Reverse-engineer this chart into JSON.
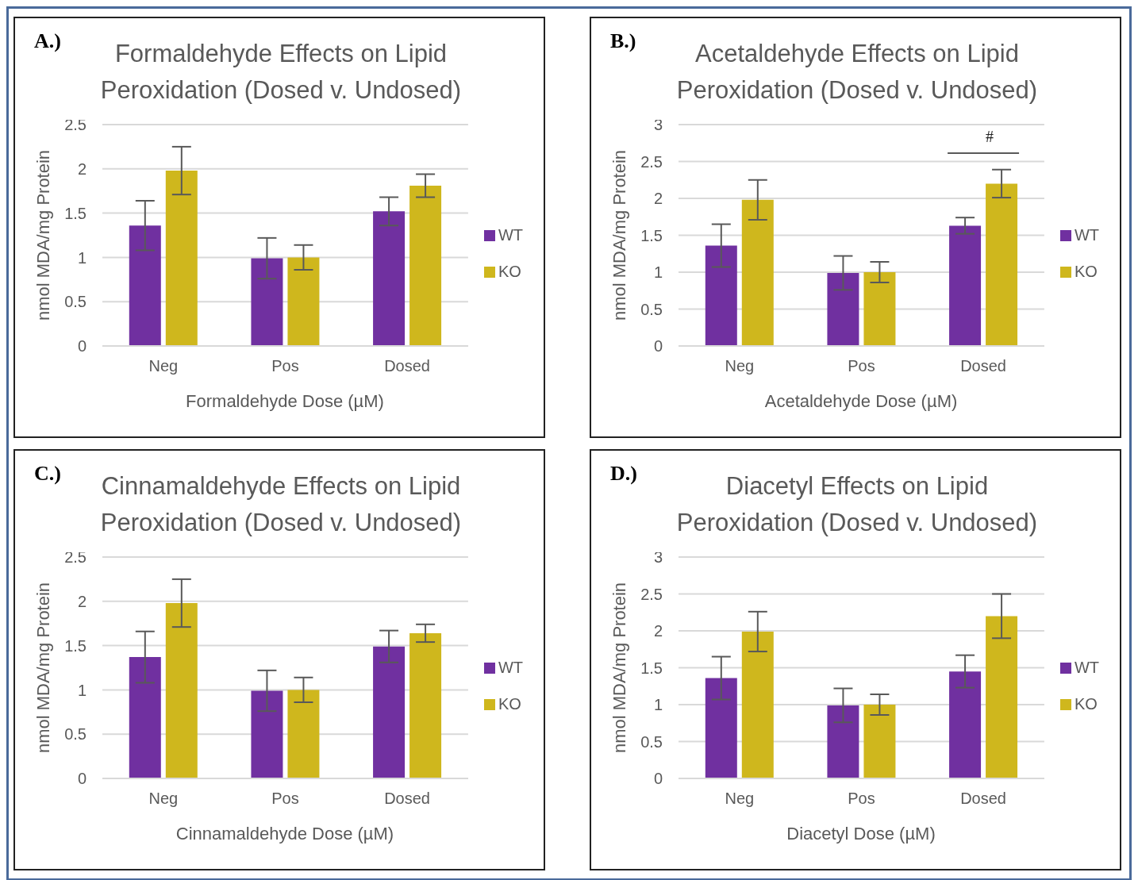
{
  "chart_data": [
    {
      "type": "bar",
      "title": "Formaldehyde Effects on Lipid Peroxidation (Dosed v. Undosed)",
      "xlabel": "Formaldehyde Dose (µM)",
      "ylabel": "nmol MDA/mg Protein",
      "annotations": [
        "A.)"
      ],
      "categories": [
        "Neg",
        "Pos",
        "Dosed"
      ],
      "series": [
        {
          "name": "WT",
          "color": "#7030a0",
          "values": [
            1.36,
            0.99,
            1.52
          ],
          "errors": [
            0.28,
            0.23,
            0.16
          ]
        },
        {
          "name": "KO",
          "color": "#cfb71d",
          "values": [
            1.98,
            1.0,
            1.81
          ],
          "errors": [
            0.27,
            0.14,
            0.13
          ]
        }
      ],
      "ylim": [
        0,
        2.5
      ],
      "yticks": [
        0,
        0.5,
        1,
        1.5,
        2,
        2.5
      ],
      "grid": "y",
      "legend": "right"
    },
    {
      "type": "bar",
      "title": "Acetaldehyde Effects on Lipid Peroxidation (Dosed v. Undosed)",
      "xlabel": "Acetaldehyde Dose (µM)",
      "ylabel": "nmol MDA/mg Protein",
      "annotations": [
        "B.)",
        "#"
      ],
      "categories": [
        "Neg",
        "Pos",
        "Dosed"
      ],
      "series": [
        {
          "name": "WT",
          "color": "#7030a0",
          "values": [
            1.36,
            0.99,
            1.63
          ],
          "errors": [
            0.29,
            0.23,
            0.11
          ]
        },
        {
          "name": "KO",
          "color": "#cfb71d",
          "values": [
            1.98,
            1.0,
            2.2
          ],
          "errors": [
            0.27,
            0.14,
            0.19
          ]
        }
      ],
      "ylim": [
        0,
        3
      ],
      "yticks": [
        0,
        0.5,
        1,
        1.5,
        2,
        2.5,
        3
      ],
      "grid": "y",
      "legend": "right"
    },
    {
      "type": "bar",
      "title": "Cinnamaldehyde Effects on Lipid Peroxidation (Dosed v. Undosed)",
      "xlabel": "Cinnamaldehyde Dose (µM)",
      "ylabel": "nmol MDA/mg Protein",
      "annotations": [
        "C.)"
      ],
      "categories": [
        "Neg",
        "Pos",
        "Dosed"
      ],
      "series": [
        {
          "name": "WT",
          "color": "#7030a0",
          "values": [
            1.37,
            0.99,
            1.49
          ],
          "errors": [
            0.29,
            0.23,
            0.18
          ]
        },
        {
          "name": "KO",
          "color": "#cfb71d",
          "values": [
            1.98,
            1.0,
            1.64
          ],
          "errors": [
            0.27,
            0.14,
            0.1
          ]
        }
      ],
      "ylim": [
        0,
        2.5
      ],
      "yticks": [
        0,
        0.5,
        1,
        1.5,
        2,
        2.5
      ],
      "grid": "y",
      "legend": "right"
    },
    {
      "type": "bar",
      "title": "Diacetyl Effects on Lipid Peroxidation (Dosed v. Undosed)",
      "xlabel": "Diacetyl Dose (µM)",
      "ylabel": "nmol MDA/mg Protein",
      "annotations": [
        "D.)"
      ],
      "categories": [
        "Neg",
        "Pos",
        "Dosed"
      ],
      "series": [
        {
          "name": "WT",
          "color": "#7030a0",
          "values": [
            1.36,
            0.99,
            1.45
          ],
          "errors": [
            0.29,
            0.23,
            0.22
          ]
        },
        {
          "name": "KO",
          "color": "#cfb71d",
          "values": [
            1.99,
            1.0,
            2.2
          ],
          "errors": [
            0.27,
            0.14,
            0.3
          ]
        }
      ],
      "ylim": [
        0,
        3
      ],
      "yticks": [
        0,
        0.5,
        1,
        1.5,
        2,
        2.5,
        3
      ],
      "grid": "y",
      "legend": "right"
    }
  ]
}
